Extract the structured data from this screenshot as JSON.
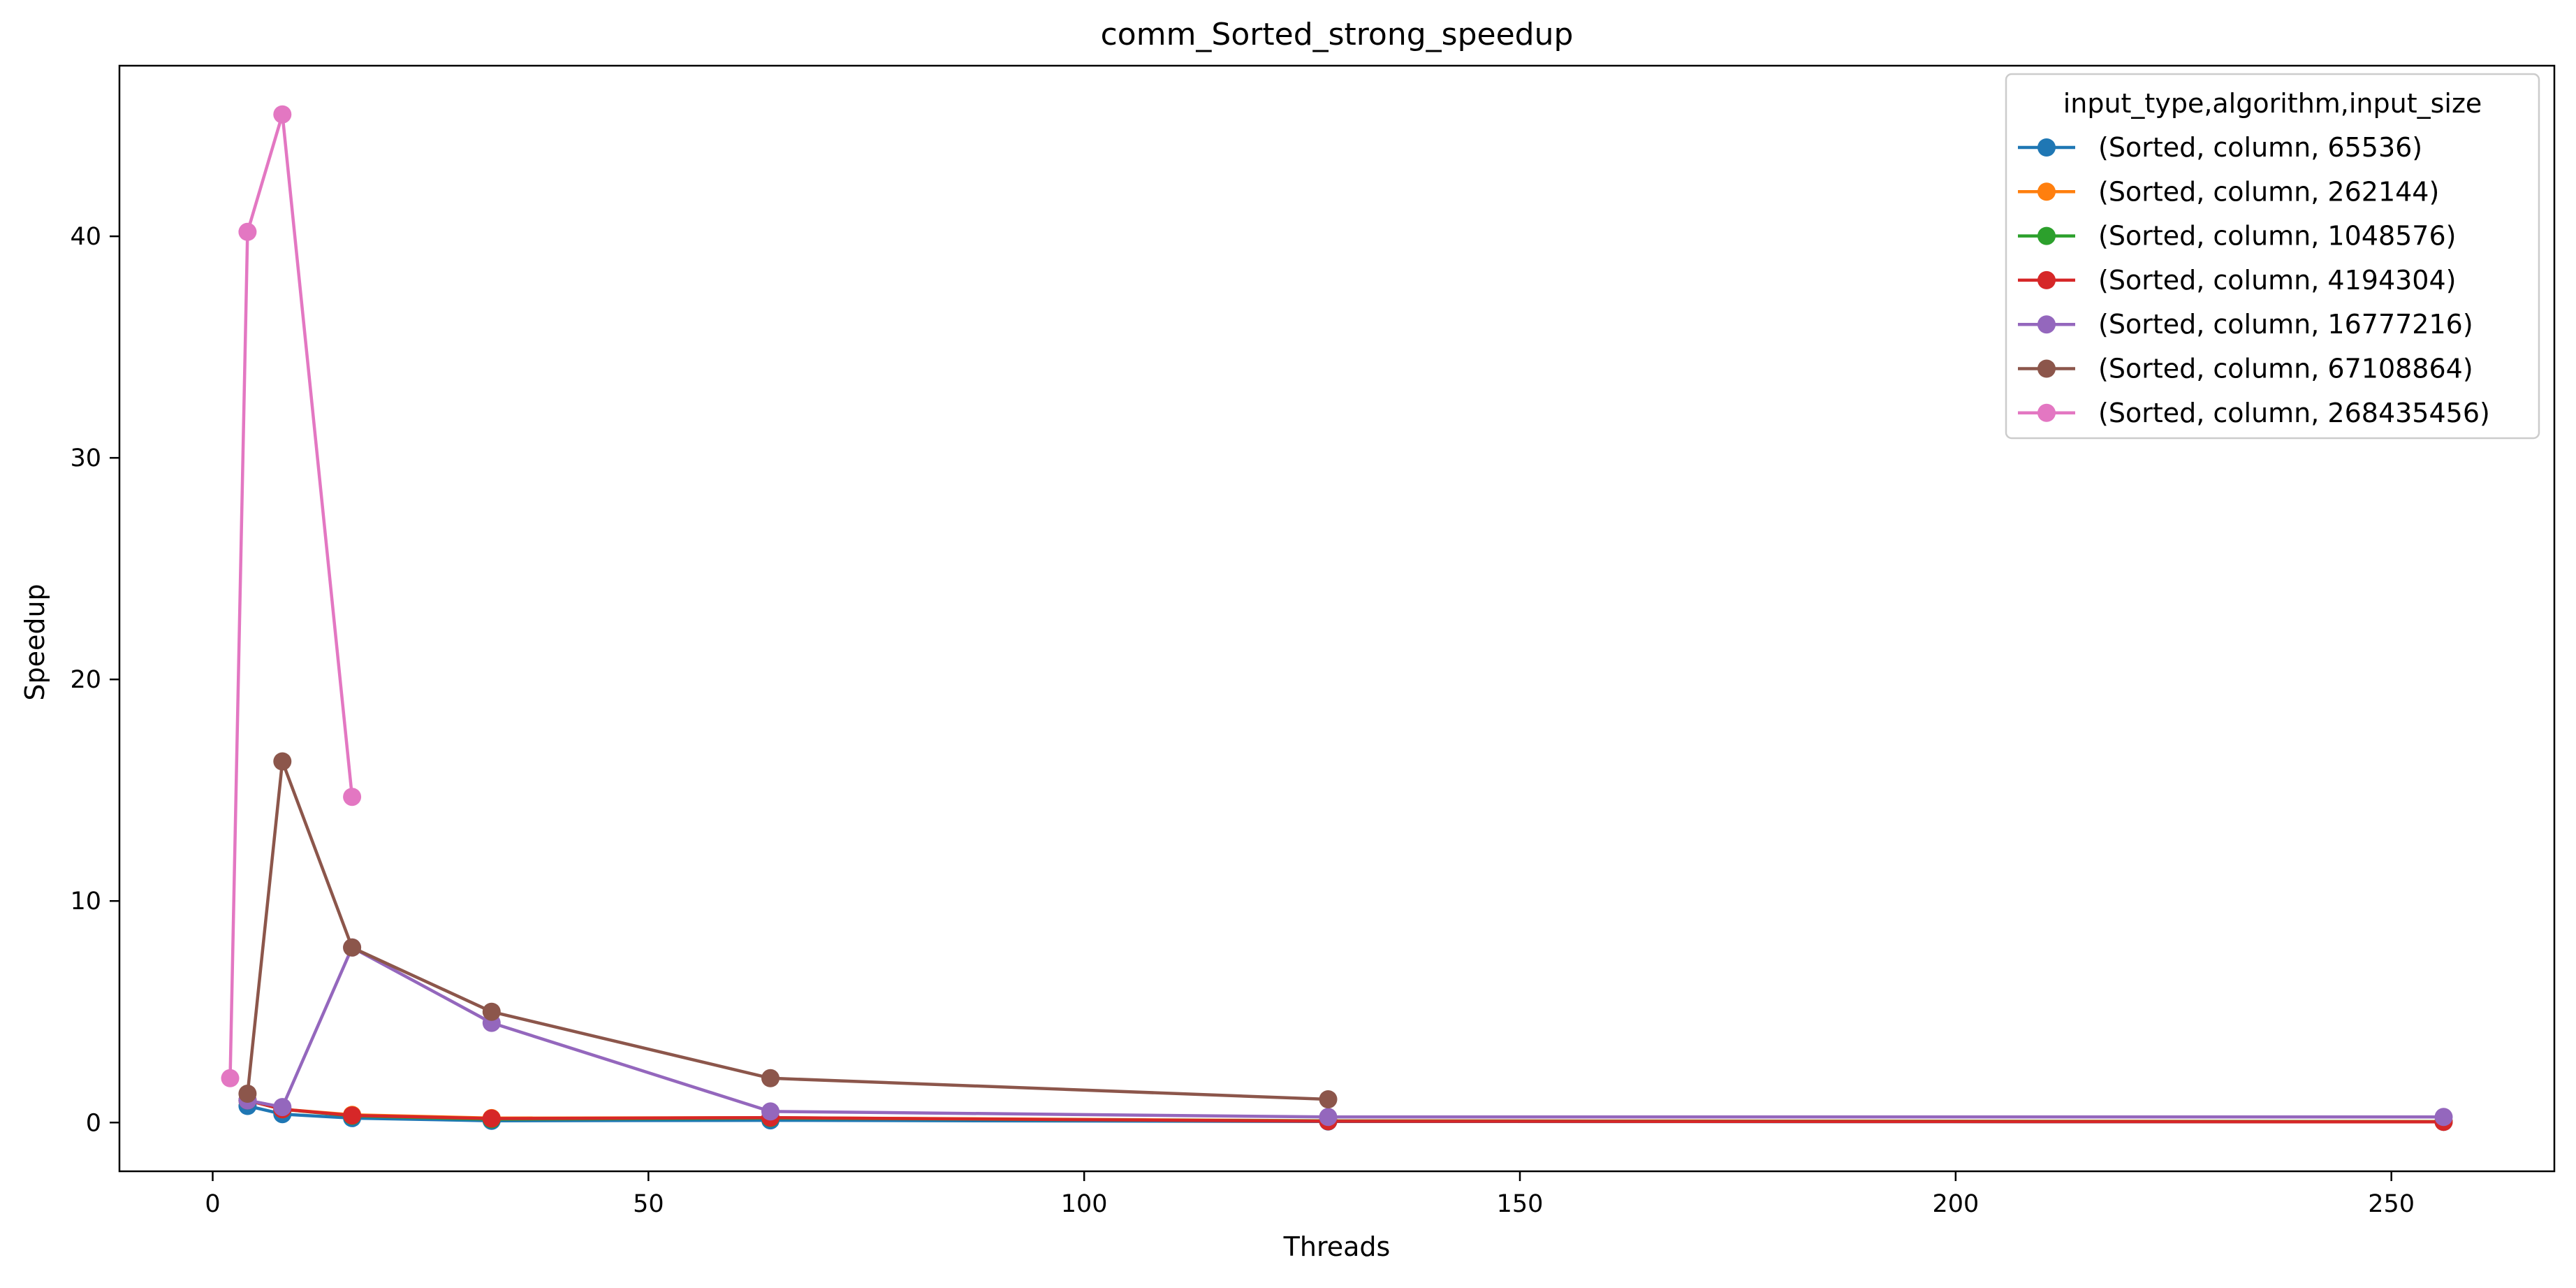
{
  "chart_data": {
    "type": "line",
    "title": "comm_Sorted_strong_speedup",
    "xlabel": "Threads",
    "ylabel": "Speedup",
    "xlim": [
      -10.7,
      268.7
    ],
    "ylim": [
      -2.2,
      47.7
    ],
    "xticks": [
      0,
      50,
      100,
      150,
      200,
      250
    ],
    "yticks": [
      0,
      10,
      20,
      30,
      40
    ],
    "grid": false,
    "legend": {
      "title": "input_type,algorithm,input_size",
      "placement": "top-right"
    },
    "series": [
      {
        "name": "(Sorted, column, 65536)",
        "color": "#1f77b4",
        "x": [
          4,
          8,
          16,
          32,
          64,
          128,
          256
        ],
        "y": [
          0.75,
          0.38,
          0.2,
          0.08,
          0.1,
          0.05,
          0.03
        ]
      },
      {
        "name": "(Sorted, column, 262144)",
        "color": "#ff7f0e",
        "x": [
          4,
          8,
          16,
          32,
          64,
          128,
          256
        ],
        "y": [
          1.0,
          0.6,
          0.35,
          0.2,
          0.22,
          0.08,
          0.05
        ]
      },
      {
        "name": "(Sorted, column, 1048576)",
        "color": "#2ca02c",
        "x": [
          4,
          8,
          16,
          32,
          64,
          128,
          256
        ],
        "y": [
          1.0,
          0.6,
          0.3,
          0.15,
          0.2,
          0.07,
          0.04
        ]
      },
      {
        "name": "(Sorted, column, 4194304)",
        "color": "#d62728",
        "x": [
          4,
          8,
          16,
          32,
          64,
          128,
          256
        ],
        "y": [
          1.0,
          0.6,
          0.32,
          0.18,
          0.22,
          0.06,
          0.03
        ]
      },
      {
        "name": "(Sorted, column, 16777216)",
        "color": "#9467bd",
        "x": [
          4,
          8,
          16,
          32,
          64,
          128,
          256
        ],
        "y": [
          1.0,
          0.7,
          7.9,
          4.5,
          0.5,
          0.25,
          0.25
        ]
      },
      {
        "name": "(Sorted, column, 67108864)",
        "color": "#8c564b",
        "x": [
          4,
          8,
          16,
          32,
          64,
          128
        ],
        "y": [
          1.3,
          16.3,
          7.9,
          5.0,
          2.0,
          1.05
        ]
      },
      {
        "name": "(Sorted, column, 268435456)",
        "color": "#e377c2",
        "x": [
          2,
          4,
          8,
          16
        ],
        "y": [
          2.0,
          40.2,
          45.5,
          14.7
        ]
      }
    ]
  }
}
